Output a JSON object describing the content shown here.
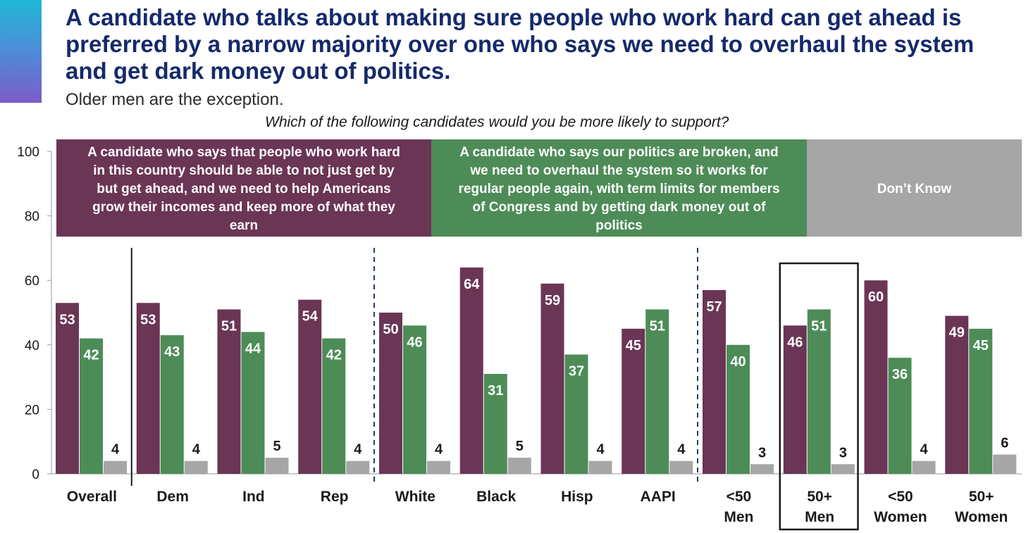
{
  "header": {
    "title": "A candidate who talks about making sure people who work hard can get ahead is preferred by a narrow majority over one who says we need to overhaul the system and get dark money out of politics.",
    "subtitle": "Older men are the exception.",
    "question": "Which of the following candidates would you be more likely to support?"
  },
  "colors": {
    "work_hard": "#6b3555",
    "overhaul": "#4d8c57",
    "dont_know": "#a6a6a6",
    "title": "#152a6b"
  },
  "chart_data": {
    "type": "bar",
    "categories": [
      "Overall",
      "Dem",
      "Ind",
      "Rep",
      "White",
      "Black",
      "Hisp",
      "AAPI",
      "<50 Men",
      "50+ Men",
      "<50 Women",
      "50+ Women"
    ],
    "category_lines": [
      [
        "Overall"
      ],
      [
        "Dem"
      ],
      [
        "Ind"
      ],
      [
        "Rep"
      ],
      [
        "White"
      ],
      [
        "Black"
      ],
      [
        "Hisp"
      ],
      [
        "AAPI"
      ],
      [
        "<50",
        "Men"
      ],
      [
        "50+",
        "Men"
      ],
      [
        "<50",
        "Women"
      ],
      [
        "50+",
        "Women"
      ]
    ],
    "series": [
      {
        "name": "A candidate who says that people who work hard in this country should be able to not just get by but get ahead, and we need to help Americans grow their incomes and keep more of what they earn",
        "legend_lines": [
          "A candidate who says that people who work hard",
          "in this country should be able to not just get by",
          "but get ahead, and we need to help Americans",
          "grow their incomes and keep more of what they",
          "earn"
        ],
        "values": [
          53,
          53,
          51,
          54,
          50,
          64,
          59,
          45,
          57,
          46,
          60,
          49
        ]
      },
      {
        "name": "A candidate who says our politics are broken, and we need to overhaul the system so it works for regular people again, with term limits for members of Congress and by getting dark money out of politics",
        "legend_lines": [
          "A candidate who says our politics are broken, and",
          "we need to overhaul the system so it works for",
          "regular people again, with term limits for members",
          "of Congress and by getting dark money out of",
          "politics"
        ],
        "values": [
          42,
          43,
          44,
          42,
          46,
          31,
          37,
          51,
          40,
          51,
          36,
          45
        ]
      },
      {
        "name": "Don’t Know",
        "legend_lines": [
          "Don’t Know"
        ],
        "values": [
          4,
          4,
          5,
          4,
          4,
          5,
          4,
          4,
          3,
          3,
          4,
          6
        ]
      }
    ],
    "yticks": [
      0,
      20,
      40,
      60,
      80,
      100
    ],
    "ylim": [
      0,
      100
    ],
    "title": "Which of the following candidates would you be more likely to support?",
    "xlabel": "",
    "ylabel": "",
    "legend_position": "top",
    "separators": [
      {
        "after_category": "Overall",
        "style": "solid"
      },
      {
        "after_category": "Rep",
        "style": "dashed"
      },
      {
        "after_category": "AAPI",
        "style": "dashed"
      }
    ],
    "highlighted_category": "50+ Men"
  }
}
